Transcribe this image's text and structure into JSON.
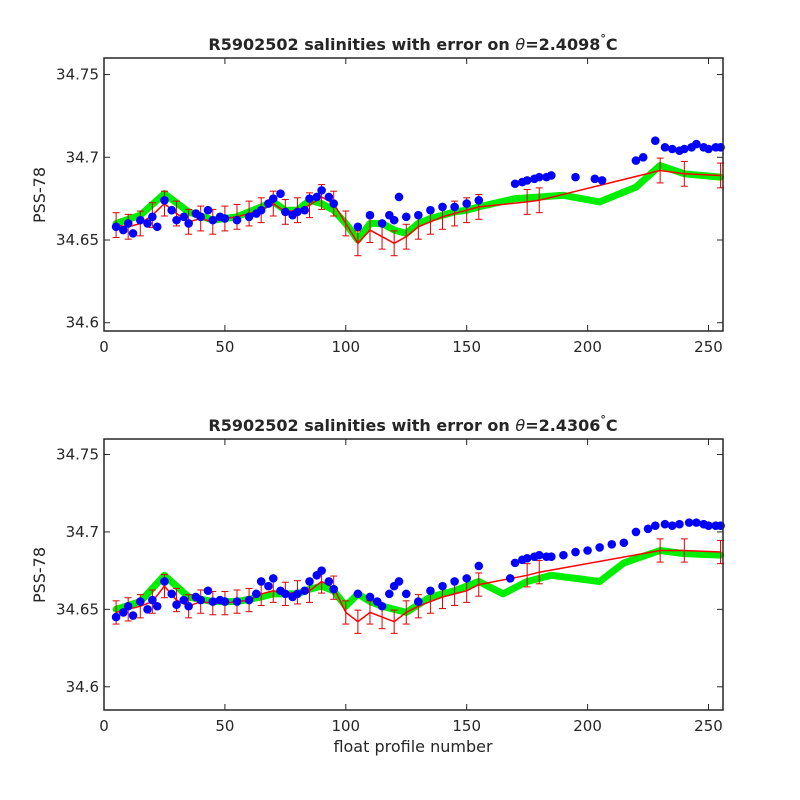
{
  "chart_data": [
    {
      "type": "line",
      "title_prefix": "R5902502 salinities with error on ",
      "title_theta": "θ",
      "title_value": "=2.4098",
      "title_deg": "°",
      "title_unit": "C",
      "ylabel": "PSS-78",
      "xlabel": "",
      "xlim": [
        0,
        256
      ],
      "ylim": [
        34.595,
        34.76
      ],
      "xticks": [
        "0",
        "50",
        "100",
        "150",
        "200",
        "250"
      ],
      "yticks": [
        "34.6",
        "34.65",
        "34.7",
        "34.75"
      ],
      "grid": false,
      "colors": {
        "mapped": "#00ee00",
        "calibrated": "#ff0000",
        "error": "#dd0000",
        "original": "#0000ff"
      },
      "series": [
        {
          "role": "mapped",
          "x": [
            5,
            15,
            25,
            35,
            45,
            55,
            65,
            70,
            75,
            80,
            85,
            90,
            95,
            100,
            105,
            110,
            115,
            120,
            125,
            130,
            135,
            140,
            145,
            150,
            155,
            170,
            180,
            190,
            205,
            220,
            230,
            240,
            255
          ],
          "values": [
            34.66,
            34.665,
            34.678,
            34.667,
            34.662,
            34.664,
            34.67,
            34.673,
            34.668,
            34.668,
            34.674,
            34.672,
            34.668,
            34.66,
            34.65,
            34.66,
            34.66,
            34.656,
            34.654,
            34.66,
            34.663,
            34.665,
            34.667,
            34.668,
            34.67,
            34.675,
            34.676,
            34.677,
            34.673,
            34.682,
            34.695,
            34.69,
            34.688
          ]
        },
        {
          "role": "calibrated",
          "x": [
            5,
            10,
            15,
            20,
            25,
            30,
            35,
            40,
            45,
            50,
            55,
            60,
            65,
            70,
            75,
            80,
            85,
            90,
            95,
            100,
            105,
            110,
            115,
            120,
            125,
            130,
            135,
            140,
            145,
            150,
            155,
            175,
            180,
            230,
            240,
            255
          ],
          "values": [
            34.659,
            34.658,
            34.66,
            34.665,
            34.672,
            34.666,
            34.661,
            34.663,
            34.661,
            34.663,
            34.664,
            34.666,
            34.668,
            34.672,
            34.667,
            34.668,
            34.671,
            34.676,
            34.672,
            34.66,
            34.648,
            34.656,
            34.652,
            34.648,
            34.652,
            34.658,
            34.661,
            34.664,
            34.666,
            34.668,
            34.67,
            34.673,
            34.674,
            34.692,
            34.69,
            34.689
          ]
        },
        {
          "role": "original",
          "x": [
            5,
            8,
            10,
            12,
            15,
            18,
            20,
            22,
            25,
            28,
            30,
            33,
            35,
            38,
            40,
            43,
            45,
            48,
            50,
            55,
            60,
            63,
            65,
            68,
            70,
            73,
            75,
            78,
            80,
            83,
            85,
            88,
            90,
            93,
            95,
            105,
            110,
            115,
            118,
            120,
            122,
            125,
            130,
            135,
            140,
            145,
            150,
            155,
            170,
            173,
            175,
            178,
            180,
            183,
            185,
            195,
            203,
            206,
            220,
            223,
            228,
            232,
            235,
            238,
            240,
            243,
            245,
            248,
            250,
            253,
            255
          ],
          "values": [
            34.658,
            34.656,
            34.66,
            34.654,
            34.662,
            34.66,
            34.664,
            34.658,
            34.674,
            34.668,
            34.662,
            34.664,
            34.66,
            34.666,
            34.664,
            34.668,
            34.662,
            34.664,
            34.663,
            34.662,
            34.664,
            34.666,
            34.668,
            34.672,
            34.675,
            34.678,
            34.667,
            34.665,
            34.667,
            34.668,
            34.675,
            34.676,
            34.68,
            34.676,
            34.672,
            34.658,
            34.665,
            34.66,
            34.665,
            34.662,
            34.676,
            34.664,
            34.665,
            34.668,
            34.67,
            34.67,
            34.672,
            34.674,
            34.684,
            34.685,
            34.686,
            34.687,
            34.688,
            34.688,
            34.689,
            34.688,
            34.687,
            34.686,
            34.698,
            34.7,
            34.71,
            34.706,
            34.705,
            34.704,
            34.705,
            34.706,
            34.708,
            34.706,
            34.705,
            34.706,
            34.706
          ]
        }
      ],
      "error_bars": {
        "x": [
          5,
          10,
          15,
          20,
          25,
          30,
          35,
          40,
          45,
          50,
          55,
          60,
          65,
          70,
          75,
          80,
          85,
          90,
          95,
          100,
          105,
          110,
          115,
          120,
          125,
          130,
          135,
          140,
          145,
          150,
          155,
          175,
          180,
          230,
          240,
          255
        ],
        "half_width": 0.0075
      }
    },
    {
      "type": "line",
      "title_prefix": "R5902502 salinities with error on ",
      "title_theta": "θ",
      "title_value": "=2.4306",
      "title_deg": "°",
      "title_unit": "C",
      "ylabel": "PSS-78",
      "xlabel": "float profile number",
      "xlim": [
        0,
        256
      ],
      "ylim": [
        34.585,
        34.76
      ],
      "xticks": [
        "0",
        "50",
        "100",
        "150",
        "200",
        "250"
      ],
      "yticks": [
        "34.6",
        "34.65",
        "34.7",
        "34.75"
      ],
      "grid": false,
      "colors": {
        "mapped": "#00ee00",
        "calibrated": "#ff0000",
        "error": "#dd0000",
        "original": "#0000ff"
      },
      "series": [
        {
          "role": "mapped",
          "x": [
            5,
            15,
            25,
            35,
            45,
            55,
            65,
            70,
            75,
            80,
            85,
            90,
            95,
            100,
            105,
            110,
            115,
            120,
            125,
            130,
            135,
            140,
            145,
            150,
            155,
            165,
            175,
            185,
            195,
            205,
            215,
            230,
            240,
            255
          ],
          "values": [
            34.65,
            34.655,
            34.672,
            34.658,
            34.655,
            34.655,
            34.658,
            34.66,
            34.66,
            34.66,
            34.663,
            34.665,
            34.662,
            34.652,
            34.66,
            34.655,
            34.652,
            34.65,
            34.648,
            34.653,
            34.658,
            34.66,
            34.662,
            34.665,
            34.668,
            34.66,
            34.668,
            34.672,
            34.67,
            34.668,
            34.68,
            34.688,
            34.686,
            34.685
          ]
        },
        {
          "role": "calibrated",
          "x": [
            5,
            10,
            15,
            20,
            25,
            30,
            35,
            40,
            45,
            50,
            55,
            60,
            65,
            70,
            75,
            80,
            85,
            90,
            95,
            100,
            105,
            110,
            115,
            120,
            125,
            130,
            135,
            140,
            145,
            150,
            155,
            175,
            180,
            230,
            240,
            255
          ],
          "values": [
            34.648,
            34.65,
            34.652,
            34.655,
            34.665,
            34.656,
            34.652,
            34.655,
            34.654,
            34.654,
            34.655,
            34.656,
            34.66,
            34.662,
            34.66,
            34.661,
            34.662,
            34.668,
            34.664,
            34.648,
            34.642,
            34.648,
            34.645,
            34.642,
            34.648,
            34.652,
            34.655,
            34.658,
            34.66,
            34.662,
            34.666,
            34.672,
            34.674,
            34.688,
            34.688,
            34.687
          ]
        },
        {
          "role": "original",
          "x": [
            5,
            8,
            10,
            12,
            15,
            18,
            20,
            22,
            25,
            28,
            30,
            33,
            35,
            38,
            40,
            43,
            45,
            48,
            50,
            55,
            60,
            63,
            65,
            68,
            70,
            73,
            75,
            78,
            80,
            83,
            85,
            88,
            90,
            93,
            95,
            105,
            110,
            113,
            115,
            118,
            120,
            122,
            125,
            130,
            135,
            140,
            145,
            150,
            155,
            168,
            170,
            173,
            175,
            178,
            180,
            183,
            185,
            190,
            195,
            200,
            205,
            210,
            215,
            220,
            225,
            228,
            232,
            235,
            238,
            242,
            245,
            248,
            250,
            253,
            255
          ],
          "values": [
            34.645,
            34.648,
            34.652,
            34.646,
            34.655,
            34.65,
            34.656,
            34.652,
            34.668,
            34.66,
            34.653,
            34.656,
            34.652,
            34.658,
            34.656,
            34.662,
            34.655,
            34.656,
            34.655,
            34.655,
            34.656,
            34.66,
            34.668,
            34.665,
            34.67,
            34.662,
            34.66,
            34.658,
            34.66,
            34.662,
            34.668,
            34.672,
            34.675,
            34.668,
            34.663,
            34.66,
            34.658,
            34.655,
            34.652,
            34.66,
            34.665,
            34.668,
            34.66,
            34.655,
            34.662,
            34.665,
            34.668,
            34.67,
            34.678,
            34.67,
            34.68,
            34.682,
            34.683,
            34.684,
            34.685,
            34.684,
            34.684,
            34.685,
            34.687,
            34.688,
            34.69,
            34.692,
            34.693,
            34.7,
            34.702,
            34.704,
            34.705,
            34.704,
            34.705,
            34.706,
            34.706,
            34.705,
            34.704,
            34.704,
            34.704
          ]
        }
      ],
      "error_bars": {
        "x": [
          5,
          10,
          15,
          20,
          25,
          30,
          35,
          40,
          45,
          50,
          55,
          60,
          65,
          70,
          75,
          80,
          85,
          90,
          95,
          100,
          105,
          110,
          115,
          120,
          125,
          130,
          135,
          140,
          145,
          150,
          155,
          175,
          180,
          230,
          240,
          255
        ],
        "half_width": 0.0075
      }
    }
  ]
}
